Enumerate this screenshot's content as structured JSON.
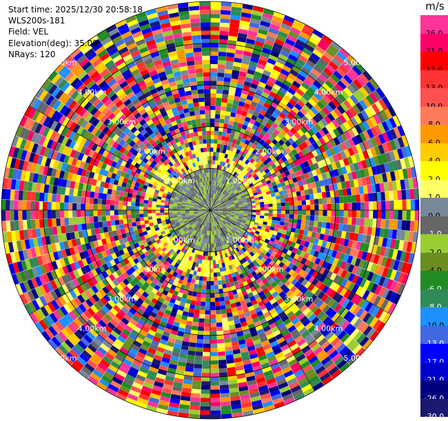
{
  "info": {
    "start_time": "Start time: 2025/12/30 20:58:18",
    "instrument": "WLS200s-181",
    "field": "Field: VEL",
    "elevation": "Elevation(deg): 35.00",
    "nrays": "NRays: 120"
  },
  "colorbar": {
    "unit": "m/s",
    "levels": [
      {
        "label": "26.0",
        "color": "#ff3399"
      },
      {
        "label": "21.0",
        "color": "#ff0066"
      },
      {
        "label": "17.0",
        "color": "#ff0000"
      },
      {
        "label": "13.0",
        "color": "#ff3333"
      },
      {
        "label": "10.0",
        "color": "#ff5050"
      },
      {
        "label": "8.0",
        "color": "#ff7a5a"
      },
      {
        "label": "6.0",
        "color": "#ff9900"
      },
      {
        "label": "4.0",
        "color": "#ffcc00"
      },
      {
        "label": "2.0",
        "color": "#ffff00"
      },
      {
        "label": "1.0",
        "color": "#ffff66"
      },
      {
        "label": "0.0",
        "color": "#778899"
      },
      {
        "label": "-1.0",
        "color": "#666666"
      },
      {
        "label": "-2.0",
        "color": "#9acd32"
      },
      {
        "label": "-4.0",
        "color": "#6b8e23"
      },
      {
        "label": "-6.0",
        "color": "#228b22"
      },
      {
        "label": "-8.0",
        "color": "#2e8b57"
      },
      {
        "label": "-10.0",
        "color": "#1e90ff"
      },
      {
        "label": "-13.0",
        "color": "#4169e1"
      },
      {
        "label": "-17.0",
        "color": "#0000ff"
      },
      {
        "label": "-21.0",
        "color": "#0000cd"
      },
      {
        "label": "-26.0",
        "color": "#000080"
      },
      {
        "label": "-30.0",
        "color": "#191970"
      }
    ]
  },
  "chart_data": {
    "type": "heatmap",
    "projection": "polar-ppi",
    "field": "VEL",
    "nrays": 120,
    "elevation_deg": 35.0,
    "range_rings_km": [
      1.0,
      2.0,
      3.0,
      4.0,
      5.0
    ],
    "range_labels": [
      "1.00km",
      "2.00km",
      "3.00km",
      "4.00km",
      "5.00km"
    ],
    "max_range_km": 5.0,
    "near_field_signal": {
      "core_range_km": 1.0,
      "core_values_ms": [
        -1.0,
        -2.0,
        0.0
      ],
      "ring_values_ms": [
        1.0,
        2.0
      ]
    },
    "far_field": "noise (random values across the -30 to 26 m/s scale)",
    "vmin": -30.0,
    "vmax": 26.0
  }
}
